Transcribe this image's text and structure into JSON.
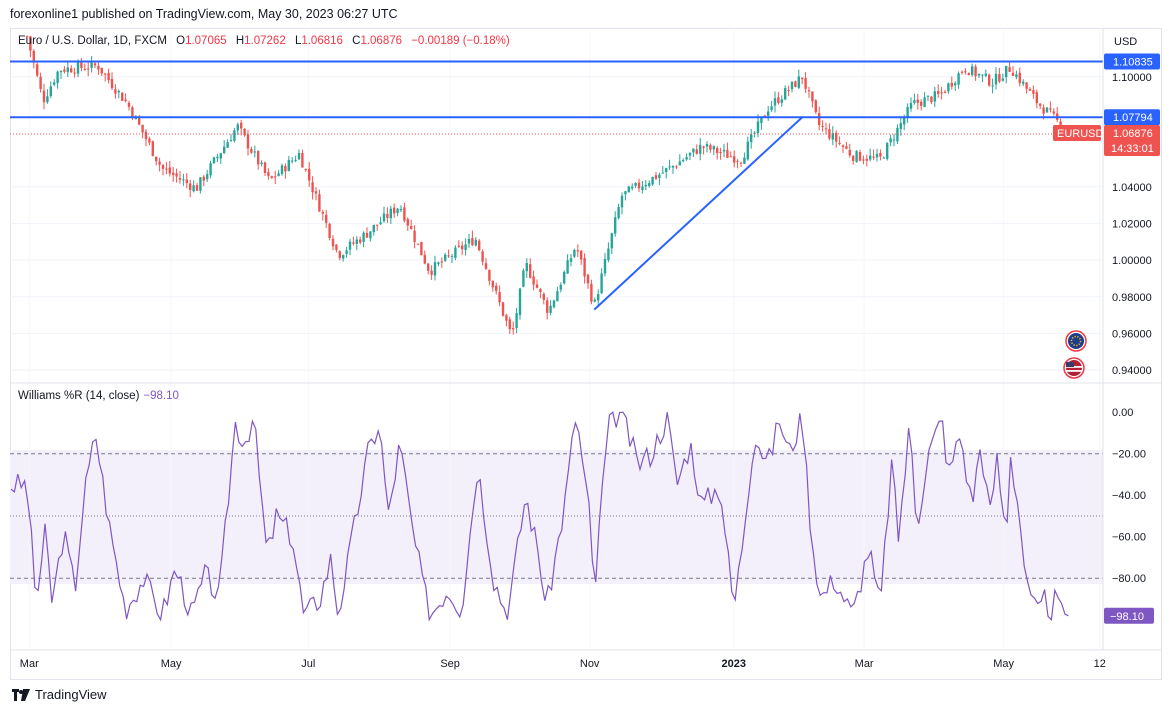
{
  "header": {
    "published": "forexonline1 published on TradingView.com, May 30, 2023 06:27 UTC"
  },
  "legend": {
    "symbol": "Euro / U.S. Dollar, 1D, FXCM",
    "open_label": "O",
    "open": "1.07065",
    "high_label": "H",
    "high": "1.07262",
    "low_label": "L",
    "low": "1.06816",
    "close_label": "C",
    "close": "1.06876",
    "change": "−0.00189 (−0.18%)"
  },
  "indicator": {
    "name": "Williams %R (14, close)",
    "value": "−98.10"
  },
  "footer": {
    "brand": "TradingView"
  },
  "colors": {
    "up": "#26a69a",
    "down": "#ef5350",
    "level_line": "#2962ff",
    "wr_line": "#7e57c2",
    "wr_band": "#f3effb",
    "axis_text": "#131722"
  },
  "icons": [
    "tradingview-logo-icon",
    "eu-flag-icon",
    "us-flag-icon"
  ],
  "chart_data": [
    {
      "type": "candlestick",
      "symbol": "EURUSD",
      "timeframe": "1D",
      "currency_label": "USD",
      "y_ticks": [
        "1.10000",
        "1.04000",
        "1.02000",
        "1.00000",
        "0.98000",
        "0.96000",
        "0.94000"
      ],
      "y_tick_values": [
        1.1,
        1.04,
        1.02,
        1.0,
        0.98,
        0.96,
        0.94
      ],
      "ylim": [
        0.9335,
        1.1255
      ],
      "x_labels": [
        "Mar",
        "May",
        "Jul",
        "Sep",
        "Nov",
        "2023",
        "Mar",
        "May",
        "12"
      ],
      "levels": [
        {
          "value": 1.10835,
          "label": "1.10835"
        },
        {
          "value": 1.07794,
          "label": "1.07794"
        }
      ],
      "last_price": {
        "value": 1.06876,
        "label": "1.06876",
        "symbol": "EURUSD",
        "countdown": "14:33:01"
      },
      "trendline": [
        {
          "date": "2022-11-03",
          "price": 0.973
        },
        {
          "date": "2023-02-02",
          "price": 1.078
        }
      ],
      "close_path": [
        {
          "date": "2022-02-28",
          "close": 1.122
        },
        {
          "date": "2022-03-07",
          "close": 1.087
        },
        {
          "date": "2022-03-14",
          "close": 1.104
        },
        {
          "date": "2022-03-31",
          "close": 1.106
        },
        {
          "date": "2022-04-13",
          "close": 1.085
        },
        {
          "date": "2022-04-28",
          "close": 1.05
        },
        {
          "date": "2022-05-13",
          "close": 1.039
        },
        {
          "date": "2022-05-31",
          "close": 1.073
        },
        {
          "date": "2022-06-14",
          "close": 1.043
        },
        {
          "date": "2022-06-27",
          "close": 1.058
        },
        {
          "date": "2022-07-14",
          "close": 1.003
        },
        {
          "date": "2022-07-26",
          "close": 1.014
        },
        {
          "date": "2022-08-10",
          "close": 1.03
        },
        {
          "date": "2022-08-23",
          "close": 0.994
        },
        {
          "date": "2022-09-12",
          "close": 1.012
        },
        {
          "date": "2022-09-28",
          "close": 0.958
        },
        {
          "date": "2022-10-04",
          "close": 0.998
        },
        {
          "date": "2022-10-14",
          "close": 0.972
        },
        {
          "date": "2022-10-26",
          "close": 1.008
        },
        {
          "date": "2022-11-03",
          "close": 0.975
        },
        {
          "date": "2022-11-15",
          "close": 1.035
        },
        {
          "date": "2022-12-06",
          "close": 1.05
        },
        {
          "date": "2022-12-20",
          "close": 1.062
        },
        {
          "date": "2023-01-06",
          "close": 1.055
        },
        {
          "date": "2023-01-18",
          "close": 1.083
        },
        {
          "date": "2023-02-02",
          "close": 1.1
        },
        {
          "date": "2023-02-09",
          "close": 1.074
        },
        {
          "date": "2023-02-24",
          "close": 1.057
        },
        {
          "date": "2023-03-08",
          "close": 1.055
        },
        {
          "date": "2023-03-22",
          "close": 1.085
        },
        {
          "date": "2023-04-03",
          "close": 1.09
        },
        {
          "date": "2023-04-14",
          "close": 1.105
        },
        {
          "date": "2023-04-26",
          "close": 1.097
        },
        {
          "date": "2023-05-04",
          "close": 1.105
        },
        {
          "date": "2023-05-15",
          "close": 1.087
        },
        {
          "date": "2023-05-30",
          "close": 1.06876
        }
      ]
    },
    {
      "type": "line",
      "name": "Williams %R (14, close)",
      "y_ticks": [
        "0.00",
        "−20.00",
        "−40.00",
        "−60.00",
        "−80.00"
      ],
      "y_tick_values": [
        0,
        -20,
        -40,
        -60,
        -80
      ],
      "ylim": [
        -104,
        3
      ],
      "band": {
        "upper": -20,
        "middle": -50,
        "lower": -80
      },
      "last_value": {
        "value": -98.1,
        "label": "−98.10"
      },
      "series": [
        {
          "date": "2022-02-28",
          "value": -35
        },
        {
          "date": "2022-03-04",
          "value": -92
        },
        {
          "date": "2022-03-08",
          "value": -58
        },
        {
          "date": "2022-03-11",
          "value": -92
        },
        {
          "date": "2022-03-16",
          "value": -58
        },
        {
          "date": "2022-03-21",
          "value": -85
        },
        {
          "date": "2022-03-25",
          "value": -40
        },
        {
          "date": "2022-03-30",
          "value": -10
        },
        {
          "date": "2022-04-05",
          "value": -55
        },
        {
          "date": "2022-04-12",
          "value": -95
        },
        {
          "date": "2022-04-20",
          "value": -80
        },
        {
          "date": "2022-04-28",
          "value": -98
        },
        {
          "date": "2022-05-04",
          "value": -75
        },
        {
          "date": "2022-05-11",
          "value": -98
        },
        {
          "date": "2022-05-17",
          "value": -78
        },
        {
          "date": "2022-05-23",
          "value": -90
        },
        {
          "date": "2022-05-30",
          "value": -5
        },
        {
          "date": "2022-06-03",
          "value": -15
        },
        {
          "date": "2022-06-07",
          "value": -2
        },
        {
          "date": "2022-06-13",
          "value": -70
        },
        {
          "date": "2022-06-17",
          "value": -50
        },
        {
          "date": "2022-06-24",
          "value": -60
        },
        {
          "date": "2022-06-29",
          "value": -98
        },
        {
          "date": "2022-07-06",
          "value": -90
        },
        {
          "date": "2022-07-11",
          "value": -70
        },
        {
          "date": "2022-07-14",
          "value": -98
        },
        {
          "date": "2022-07-22",
          "value": -50
        },
        {
          "date": "2022-07-27",
          "value": -20
        },
        {
          "date": "2022-08-01",
          "value": -5
        },
        {
          "date": "2022-08-05",
          "value": -50
        },
        {
          "date": "2022-08-10",
          "value": -15
        },
        {
          "date": "2022-08-16",
          "value": -60
        },
        {
          "date": "2022-08-23",
          "value": -98
        },
        {
          "date": "2022-08-31",
          "value": -85
        },
        {
          "date": "2022-09-06",
          "value": -95
        },
        {
          "date": "2022-09-13",
          "value": -25
        },
        {
          "date": "2022-09-20",
          "value": -80
        },
        {
          "date": "2022-09-26",
          "value": -98
        },
        {
          "date": "2022-10-04",
          "value": -40
        },
        {
          "date": "2022-10-10",
          "value": -70
        },
        {
          "date": "2022-10-13",
          "value": -95
        },
        {
          "date": "2022-10-21",
          "value": -45
        },
        {
          "date": "2022-10-26",
          "value": -0.5
        },
        {
          "date": "2022-11-01",
          "value": -50
        },
        {
          "date": "2022-11-03",
          "value": -90
        },
        {
          "date": "2022-11-07",
          "value": -30
        },
        {
          "date": "2022-11-10",
          "value": -3
        },
        {
          "date": "2022-11-15",
          "value": -0.5
        },
        {
          "date": "2022-11-22",
          "value": -25
        },
        {
          "date": "2022-11-28",
          "value": -20
        },
        {
          "date": "2022-12-05",
          "value": -2
        },
        {
          "date": "2022-12-09",
          "value": -35
        },
        {
          "date": "2022-12-15",
          "value": -15
        },
        {
          "date": "2022-12-20",
          "value": -45
        },
        {
          "date": "2022-12-28",
          "value": -35
        },
        {
          "date": "2023-01-03",
          "value": -95
        },
        {
          "date": "2023-01-06",
          "value": -70
        },
        {
          "date": "2023-01-12",
          "value": -10
        },
        {
          "date": "2023-01-18",
          "value": -25
        },
        {
          "date": "2023-01-23",
          "value": -3
        },
        {
          "date": "2023-01-27",
          "value": -20
        },
        {
          "date": "2023-02-02",
          "value": -2
        },
        {
          "date": "2023-02-06",
          "value": -60
        },
        {
          "date": "2023-02-10",
          "value": -90
        },
        {
          "date": "2023-02-16",
          "value": -80
        },
        {
          "date": "2023-02-24",
          "value": -98
        },
        {
          "date": "2023-03-03",
          "value": -65
        },
        {
          "date": "2023-03-08",
          "value": -95
        },
        {
          "date": "2023-03-13",
          "value": -25
        },
        {
          "date": "2023-03-16",
          "value": -60
        },
        {
          "date": "2023-03-21",
          "value": -5
        },
        {
          "date": "2023-03-24",
          "value": -55
        },
        {
          "date": "2023-03-29",
          "value": -20
        },
        {
          "date": "2023-04-04",
          "value": -3
        },
        {
          "date": "2023-04-07",
          "value": -30
        },
        {
          "date": "2023-04-12",
          "value": -10
        },
        {
          "date": "2023-04-17",
          "value": -45
        },
        {
          "date": "2023-04-21",
          "value": -15
        },
        {
          "date": "2023-04-25",
          "value": -50
        },
        {
          "date": "2023-04-28",
          "value": -22
        },
        {
          "date": "2023-05-02",
          "value": -60
        },
        {
          "date": "2023-05-04",
          "value": -20
        },
        {
          "date": "2023-05-08",
          "value": -50
        },
        {
          "date": "2023-05-11",
          "value": -85
        },
        {
          "date": "2023-05-16",
          "value": -98
        },
        {
          "date": "2023-05-19",
          "value": -90
        },
        {
          "date": "2023-05-22",
          "value": -98
        },
        {
          "date": "2023-05-24",
          "value": -88
        },
        {
          "date": "2023-05-26",
          "value": -98
        },
        {
          "date": "2023-05-29",
          "value": -95
        },
        {
          "date": "2023-05-30",
          "value": -98.1
        }
      ]
    }
  ]
}
